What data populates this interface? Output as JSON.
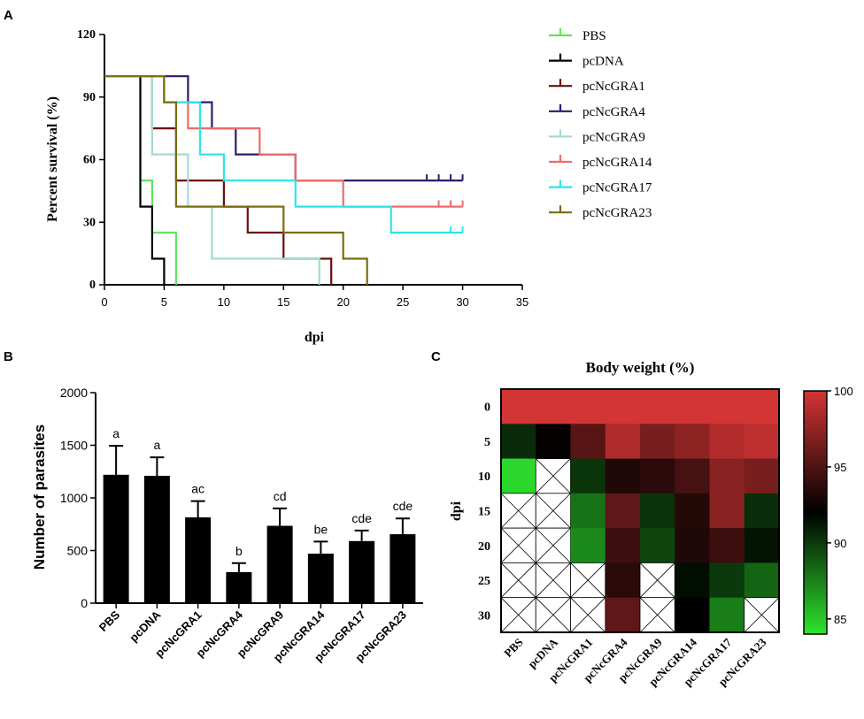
{
  "panel_labels": [
    "A",
    "B",
    "C"
  ],
  "chart_data": [
    {
      "id": "A",
      "type": "line",
      "subtype": "kaplan-meier",
      "xlabel": "dpi",
      "ylabel": "Percent survival (%)",
      "xlim": [
        0,
        35
      ],
      "ylim": [
        0,
        120
      ],
      "xticks": [
        0,
        5,
        10,
        15,
        20,
        25,
        30,
        35
      ],
      "yticks": [
        0,
        30,
        60,
        90,
        120
      ],
      "legend_position": "right",
      "series": [
        {
          "name": "PBS",
          "color": "#5ee65e",
          "steps": [
            [
              0,
              100
            ],
            [
              3,
              100
            ],
            [
              3,
              50
            ],
            [
              4,
              50
            ],
            [
              4,
              25
            ],
            [
              6,
              25
            ],
            [
              6,
              0
            ]
          ],
          "censor": []
        },
        {
          "name": "pcDNA",
          "color": "#000000",
          "steps": [
            [
              0,
              100
            ],
            [
              3,
              100
            ],
            [
              3,
              37.5
            ],
            [
              4,
              37.5
            ],
            [
              4,
              12.5
            ],
            [
              5,
              12.5
            ],
            [
              5,
              0
            ]
          ],
          "censor": []
        },
        {
          "name": "pcNcGRA1",
          "color": "#6b0d0d",
          "steps": [
            [
              0,
              100
            ],
            [
              4,
              100
            ],
            [
              4,
              75
            ],
            [
              6,
              75
            ],
            [
              6,
              50
            ],
            [
              10,
              50
            ],
            [
              10,
              37.5
            ],
            [
              12,
              37.5
            ],
            [
              12,
              25
            ],
            [
              15,
              25
            ],
            [
              15,
              12.5
            ],
            [
              19,
              12.5
            ],
            [
              19,
              0
            ]
          ],
          "censor": []
        },
        {
          "name": "pcNcGRA4",
          "color": "#2d1a6e",
          "steps": [
            [
              0,
              100
            ],
            [
              7,
              100
            ],
            [
              7,
              87.5
            ],
            [
              9,
              87.5
            ],
            [
              9,
              75
            ],
            [
              11,
              75
            ],
            [
              11,
              62.5
            ],
            [
              16,
              62.5
            ],
            [
              16,
              50
            ],
            [
              30,
              50
            ]
          ],
          "censor": [
            27,
            28,
            29,
            30
          ]
        },
        {
          "name": "pcNcGRA9",
          "color": "#a3dcc9",
          "steps": [
            [
              0,
              100
            ],
            [
              4,
              100
            ],
            [
              4,
              62.5
            ],
            [
              7,
              62.5
            ],
            [
              7,
              37.5
            ],
            [
              9,
              37.5
            ],
            [
              9,
              12.5
            ],
            [
              18,
              12.5
            ],
            [
              18,
              0
            ]
          ],
          "censor": []
        },
        {
          "name": "pcNcGRA14",
          "color": "#ee6a6a",
          "steps": [
            [
              0,
              100
            ],
            [
              5,
              100
            ],
            [
              5,
              87.5
            ],
            [
              7,
              87.5
            ],
            [
              7,
              75
            ],
            [
              13,
              75
            ],
            [
              13,
              62.5
            ],
            [
              16,
              62.5
            ],
            [
              16,
              50
            ],
            [
              20,
              50
            ],
            [
              20,
              37.5
            ],
            [
              30,
              37.5
            ]
          ],
          "censor": [
            28,
            29,
            30
          ]
        },
        {
          "name": "pcNcGRA17",
          "color": "#2fe3e8",
          "steps": [
            [
              0,
              100
            ],
            [
              5,
              100
            ],
            [
              5,
              87.5
            ],
            [
              8,
              87.5
            ],
            [
              8,
              62.5
            ],
            [
              10,
              62.5
            ],
            [
              10,
              50
            ],
            [
              16,
              50
            ],
            [
              16,
              37.5
            ],
            [
              24,
              37.5
            ],
            [
              24,
              25
            ],
            [
              30,
              25
            ]
          ],
          "censor": [
            29,
            30
          ]
        },
        {
          "name": "pcNcGRA23",
          "color": "#7a6d0c",
          "steps": [
            [
              0,
              100
            ],
            [
              5,
              100
            ],
            [
              5,
              87.5
            ],
            [
              6,
              87.5
            ],
            [
              6,
              37.5
            ],
            [
              15,
              37.5
            ],
            [
              15,
              25
            ],
            [
              20,
              25
            ],
            [
              20,
              12.5
            ],
            [
              22,
              12.5
            ],
            [
              22,
              0
            ]
          ],
          "censor": []
        }
      ]
    },
    {
      "id": "B",
      "type": "bar",
      "ylabel": "Number of parasites",
      "ylim": [
        0,
        2000
      ],
      "yticks": [
        0,
        500,
        1000,
        1500,
        2000
      ],
      "categories": [
        "PBS",
        "pcDNA",
        "pcNcGRA1",
        "pcNcGRA4",
        "pcNcGRA9",
        "pcNcGRA14",
        "pcNcGRA17",
        "pcNcGRA23"
      ],
      "values": [
        1220,
        1210,
        815,
        295,
        735,
        470,
        590,
        655
      ],
      "errors": [
        275,
        175,
        155,
        85,
        165,
        115,
        100,
        150
      ],
      "annotations": [
        "a",
        "a",
        "ac",
        "b",
        "cd",
        "be",
        "cde",
        "cde"
      ]
    },
    {
      "id": "C",
      "type": "heatmap",
      "title": "Body weight (%)",
      "ylabel": "dpi",
      "rows": [
        "0",
        "5",
        "10",
        "15",
        "20",
        "25",
        "30"
      ],
      "columns": [
        "PBS",
        "pcDNA",
        "pcNcGRA1",
        "pcNcGRA4",
        "pcNcGRA9",
        "pcNcGRA14",
        "pcNcGRA17",
        "pcNcGRA23"
      ],
      "values": [
        [
          100,
          100,
          100,
          100,
          100,
          100,
          100,
          100
        ],
        [
          90.5,
          92.2,
          95.3,
          98.6,
          96.6,
          97.4,
          98.8,
          99.2
        ],
        [
          84.5,
          null,
          90.2,
          93.2,
          93.6,
          94.6,
          97.2,
          96.6
        ],
        [
          null,
          null,
          88.0,
          95.6,
          90.3,
          93.4,
          97.2,
          90.4
        ],
        [
          null,
          null,
          87.2,
          94.3,
          89.6,
          93.2,
          94.3,
          91.3
        ],
        [
          null,
          null,
          null,
          93.6,
          null,
          91.5,
          90.0,
          88.5
        ],
        [
          null,
          null,
          null,
          95.6,
          null,
          92.0,
          87.6,
          null
        ]
      ],
      "colorbar": {
        "min": 84,
        "max": 100,
        "ticks": [
          85,
          90,
          95,
          100
        ],
        "colors": [
          "#2ee52e",
          "#000000",
          "#d33434"
        ]
      }
    }
  ]
}
